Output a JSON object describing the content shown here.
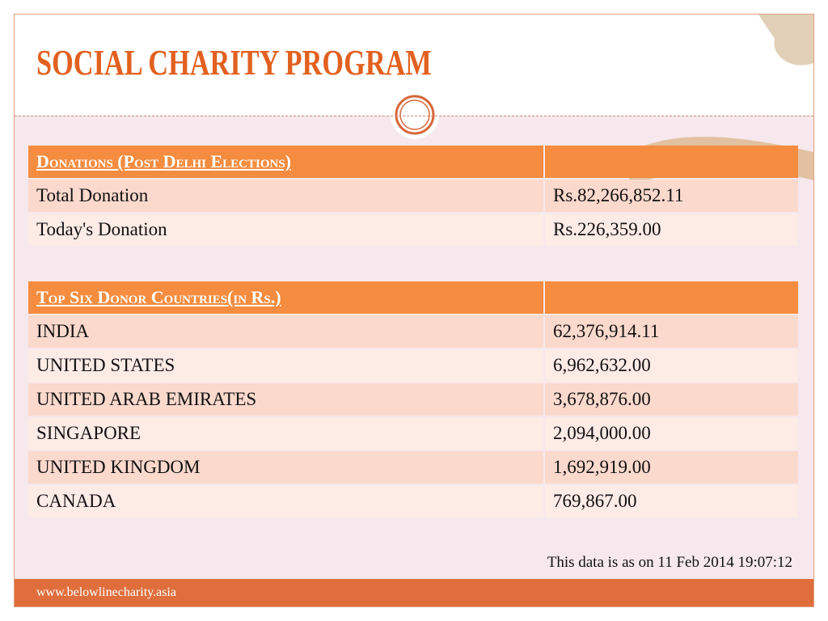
{
  "title": "SOCIAL CHARITY PROGRAM",
  "tables": [
    {
      "header": "Donations (Post Delhi Elections)",
      "rows": [
        [
          "Total Donation",
          "Rs.82,266,852.11"
        ],
        [
          "Today's Donation",
          "Rs.226,359.00"
        ]
      ]
    },
    {
      "header": "Top Six Donor Countries(in Rs.)",
      "rows": [
        [
          "INDIA",
          "62,376,914.11"
        ],
        [
          "UNITED STATES",
          "6,962,632.00"
        ],
        [
          "UNITED ARAB EMIRATES",
          "3,678,876.00"
        ],
        [
          "SINGAPORE",
          "2,094,000.00"
        ],
        [
          "UNITED KINGDOM",
          "1,692,919.00"
        ],
        [
          "CANADA",
          "769,867.00"
        ]
      ]
    }
  ],
  "note": "This data is as on 11 Feb 2014 19:07:12",
  "footer": "www.belowlinecharity.asia"
}
